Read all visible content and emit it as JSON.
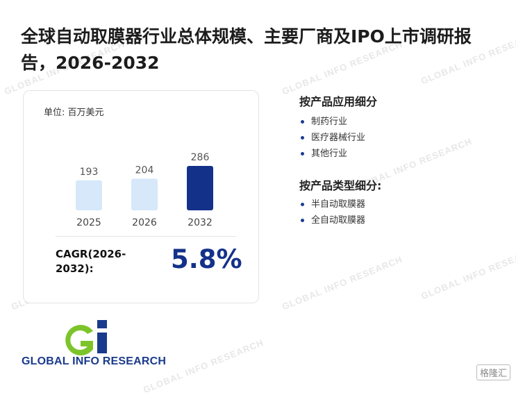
{
  "title": "全球自动取膜器行业总体规模、主要厂商及IPO上市调研报告，2026-2032",
  "watermark": "GLOBAL INFO RESEARCH",
  "card": {
    "unit": "单位: 百万美元",
    "cagr_label": "CAGR(2026-2032):",
    "cagr_value": "5.8%"
  },
  "chart_data": {
    "type": "bar",
    "categories": [
      "2025",
      "2026",
      "2032"
    ],
    "values": [
      193,
      204,
      286
    ],
    "colors": [
      "#d6e8fa",
      "#d6e8fa",
      "#14318a"
    ],
    "title": "",
    "xlabel": "",
    "ylabel": "",
    "ylim": [
      0,
      286
    ]
  },
  "segments": {
    "by_application": {
      "title": "按产品应用细分",
      "items": [
        "制药行业",
        "医疗器械行业",
        "其他行业"
      ]
    },
    "by_type": {
      "title": "按产品类型细分:",
      "items": [
        "半自动取膜器",
        "全自动取膜器"
      ]
    }
  },
  "logo": {
    "text": "GLOBAL INFO RESEARCH",
    "colors": {
      "green": "#7cc42a",
      "blue": "#1a3a8c"
    }
  },
  "corner_badge": "格隆汇"
}
